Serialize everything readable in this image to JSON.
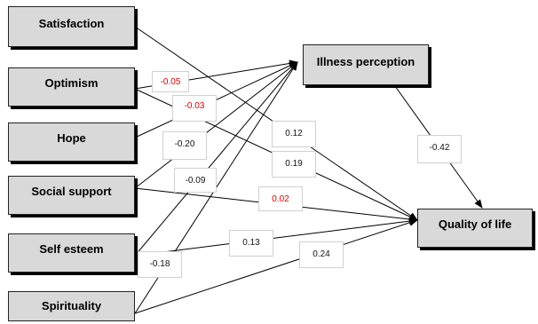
{
  "nodes": {
    "satisfaction": "Satisfaction",
    "optimism": "Optimism",
    "hope": "Hope",
    "social_support": "Social support",
    "self_esteem": "Self esteem",
    "spirituality": "Spirituality",
    "illness_perception": "Illness perception",
    "quality_of_life": "Quality of life"
  },
  "coefficients": {
    "optimism_to_illness": "-0.05",
    "optimism_to_qol": "-0.03",
    "hope_to_illness": "-0.20",
    "social_support_to_illness": "-0.09",
    "satisfaction_to_qol": "0.12",
    "hope_to_qol": "0.19",
    "social_support_to_qol": "0.02",
    "self_esteem_to_qol": "0.13",
    "self_esteem_to_illness": "-0.18",
    "spirituality_to_qol": "0.24",
    "illness_to_qol": "-0.42"
  },
  "colors": {
    "negative_highlight": "#e00000",
    "node_fill": "#d9d9d9",
    "arrow": "#000000"
  }
}
